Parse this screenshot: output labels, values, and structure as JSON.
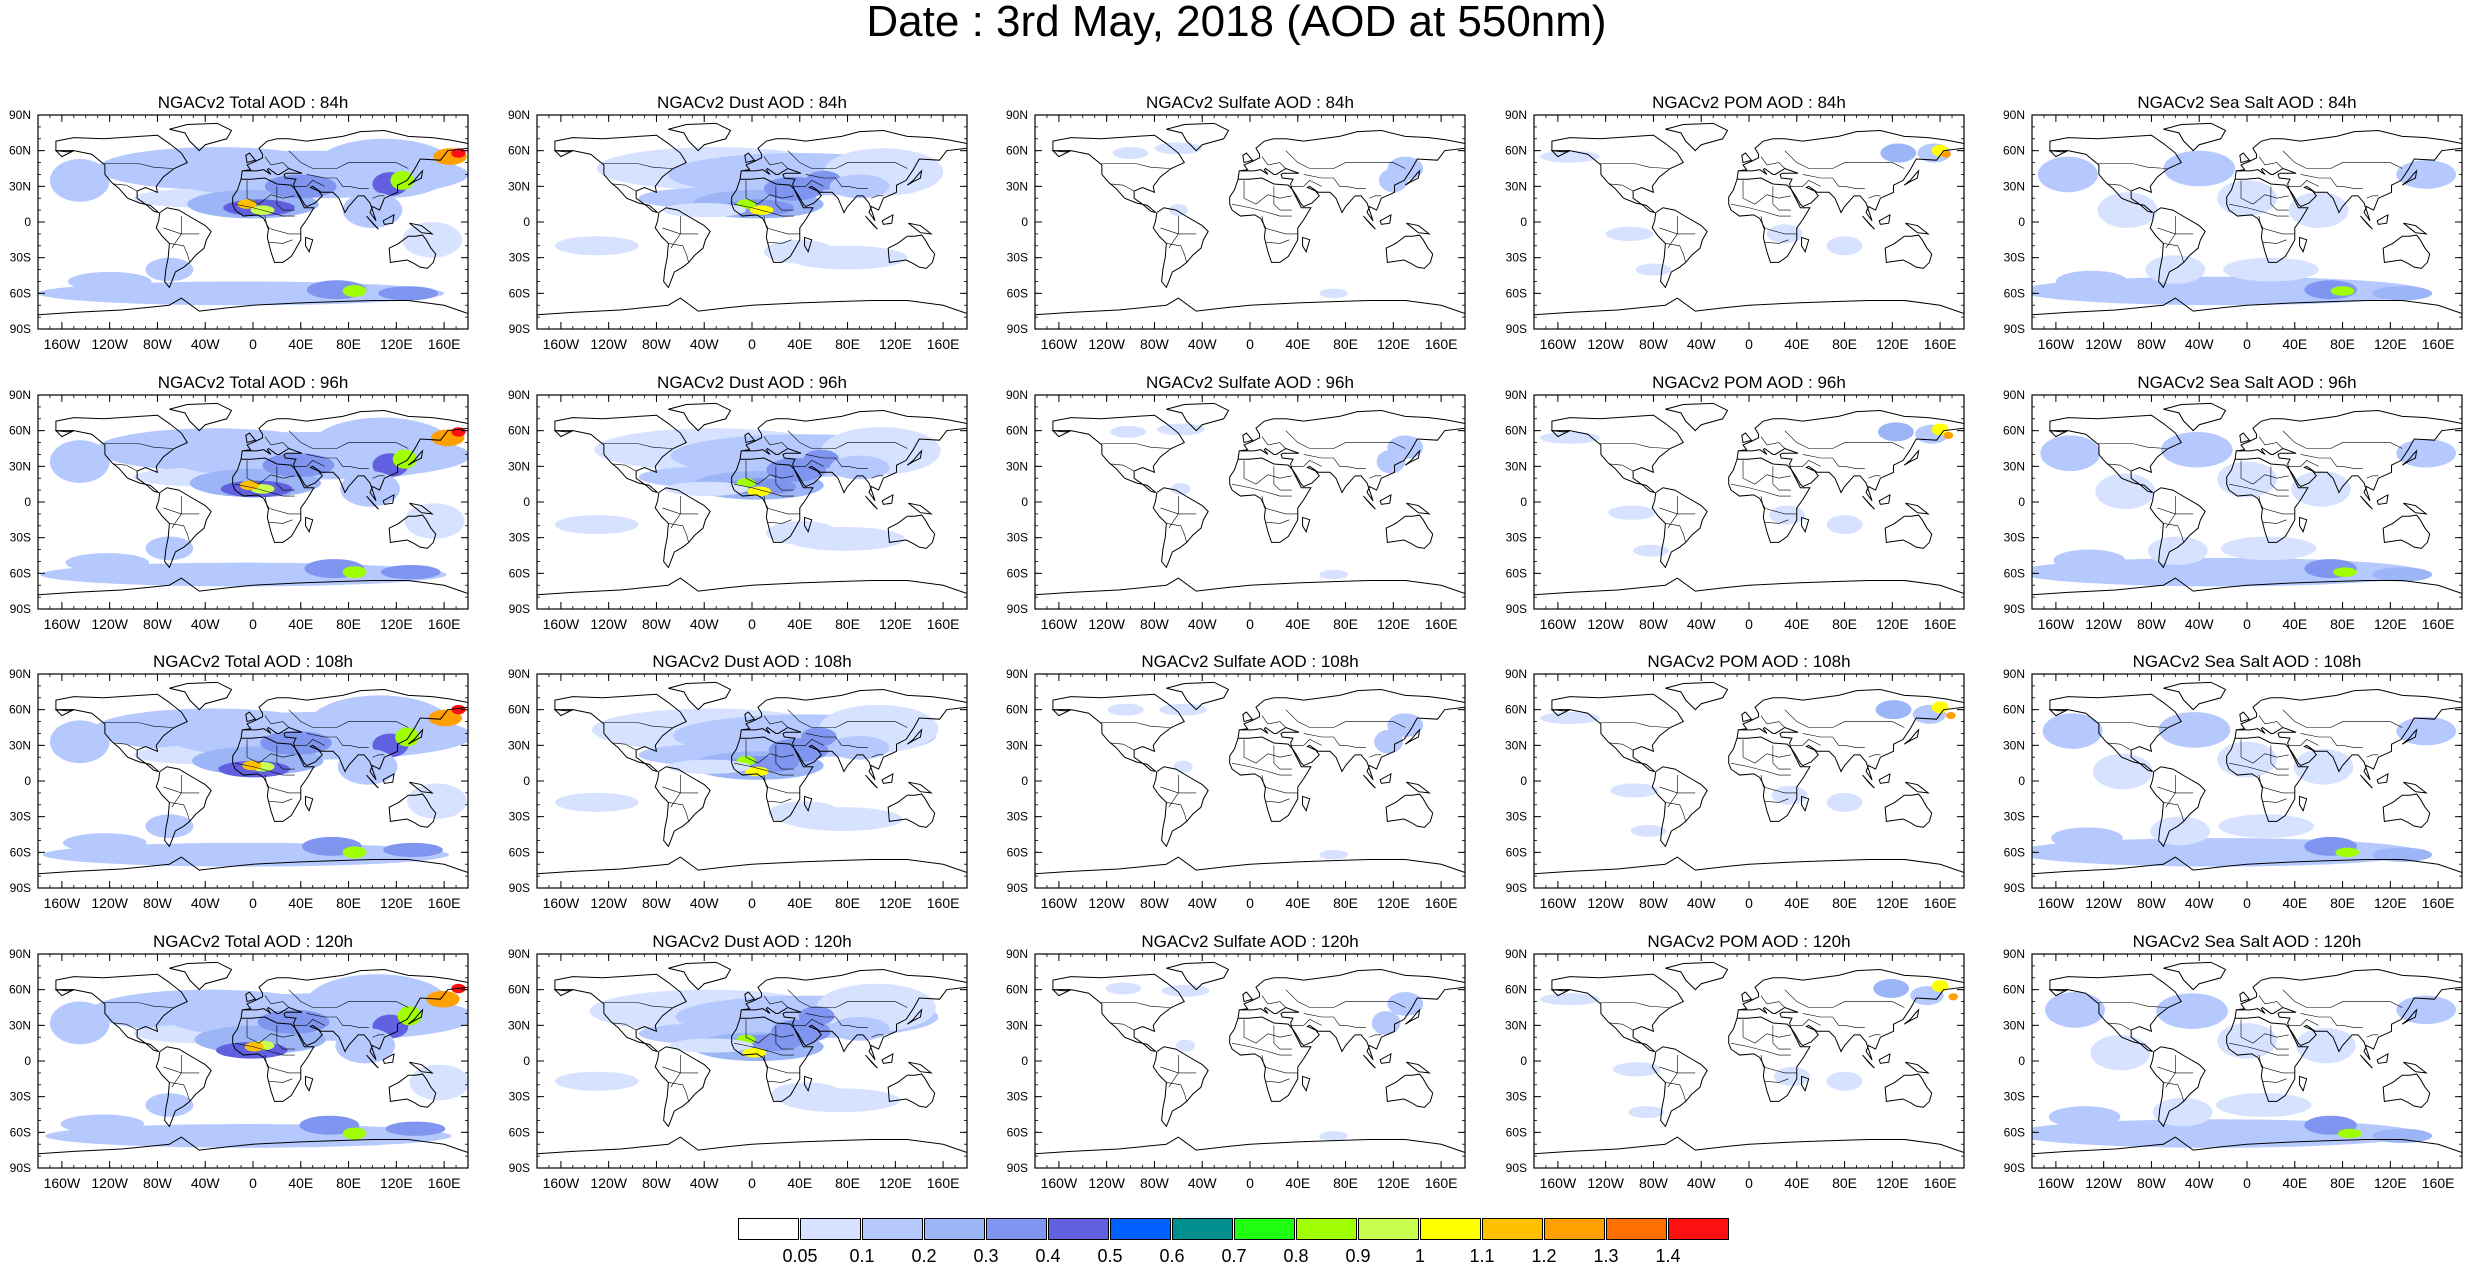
{
  "title": "Date : 3rd May, 2018 (AOD at 550nm)",
  "lat_ticks": [
    "90N",
    "60N",
    "30N",
    "0",
    "30S",
    "60S",
    "90S"
  ],
  "lon_ticks": [
    "160W",
    "120W",
    "80W",
    "40W",
    "0",
    "40E",
    "80E",
    "120E",
    "160E"
  ],
  "lon_tick_values": [
    -160,
    -120,
    -80,
    -40,
    0,
    40,
    80,
    120,
    160
  ],
  "lat_tick_values": [
    90,
    60,
    30,
    0,
    -30,
    -60,
    -90
  ],
  "panels": [
    {
      "title": "NGACv2 Total AOD : 84h",
      "species": "total",
      "lead_hours": 84
    },
    {
      "title": "NGACv2 Dust AOD : 84h",
      "species": "dust",
      "lead_hours": 84
    },
    {
      "title": "NGACv2 Sulfate AOD : 84h",
      "species": "sulfate",
      "lead_hours": 84
    },
    {
      "title": "NGACv2 POM AOD : 84h",
      "species": "pom",
      "lead_hours": 84
    },
    {
      "title": "NGACv2 Sea Salt AOD : 84h",
      "species": "seasalt",
      "lead_hours": 84
    },
    {
      "title": "NGACv2 Total AOD : 96h",
      "species": "total",
      "lead_hours": 96
    },
    {
      "title": "NGACv2 Dust AOD : 96h",
      "species": "dust",
      "lead_hours": 96
    },
    {
      "title": "NGACv2 Sulfate AOD : 96h",
      "species": "sulfate",
      "lead_hours": 96
    },
    {
      "title": "NGACv2 POM AOD : 96h",
      "species": "pom",
      "lead_hours": 96
    },
    {
      "title": "NGACv2 Sea Salt AOD : 96h",
      "species": "seasalt",
      "lead_hours": 96
    },
    {
      "title": "NGACv2 Total AOD : 108h",
      "species": "total",
      "lead_hours": 108
    },
    {
      "title": "NGACv2 Dust AOD : 108h",
      "species": "dust",
      "lead_hours": 108
    },
    {
      "title": "NGACv2 Sulfate AOD : 108h",
      "species": "sulfate",
      "lead_hours": 108
    },
    {
      "title": "NGACv2 POM AOD : 108h",
      "species": "pom",
      "lead_hours": 108
    },
    {
      "title": "NGACv2 Sea Salt AOD : 108h",
      "species": "seasalt",
      "lead_hours": 108
    },
    {
      "title": "NGACv2 Total AOD : 120h",
      "species": "total",
      "lead_hours": 120
    },
    {
      "title": "NGACv2 Dust AOD : 120h",
      "species": "dust",
      "lead_hours": 120
    },
    {
      "title": "NGACv2 Sulfate AOD : 120h",
      "species": "sulfate",
      "lead_hours": 120
    },
    {
      "title": "NGACv2 POM AOD : 120h",
      "species": "pom",
      "lead_hours": 120
    },
    {
      "title": "NGACv2 Sea Salt  AOD : 120h",
      "species": "seasalt",
      "lead_hours": 120
    }
  ],
  "colorbar": {
    "labels": [
      "0.05",
      "0.1",
      "0.2",
      "0.3",
      "0.4",
      "0.5",
      "0.6",
      "0.7",
      "0.8",
      "0.9",
      "1",
      "1.1",
      "1.2",
      "1.3",
      "1.4"
    ],
    "colors": [
      "#ffffff",
      "#d6e2ff",
      "#b5c9ff",
      "#9bb5f7",
      "#7f95ef",
      "#6060e0",
      "#0060ff",
      "#008f8f",
      "#20ff10",
      "#a0ff00",
      "#c8ff50",
      "#ffff00",
      "#ffc000",
      "#ff9f00",
      "#ff7000",
      "#ff1010"
    ]
  }
}
